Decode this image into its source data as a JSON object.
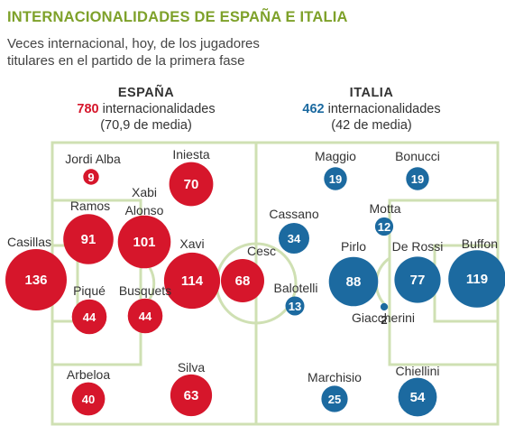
{
  "header": {
    "title": "INTERNACIONALIDADES DE ESPAÑA E ITALIA",
    "subtitle_line1": "Veces internacional, hoy, de los jugadores",
    "subtitle_line2": "titulares en el partido de la primera fase"
  },
  "teams": {
    "spain": {
      "name": "ESPAÑA",
      "total": "780",
      "total_label": "internacionalidades",
      "average": "(70,9 de media)",
      "color": "#d6162b"
    },
    "italy": {
      "name": "ITALIA",
      "total": "462",
      "total_label": "internacionalidades",
      "average": "(42 de media)",
      "color": "#1c6aa0"
    }
  },
  "colors": {
    "field_line": "#cfe0b3",
    "spain": "#d6162b",
    "italy": "#1c6aa0",
    "title": "#7ea12a"
  },
  "players": [
    {
      "team": "spain",
      "name": "Jordi Alba",
      "caps": 9
    },
    {
      "team": "spain",
      "name": "Iniesta",
      "caps": 70
    },
    {
      "team": "spain",
      "name": "Ramos",
      "caps": 91
    },
    {
      "team": "spain",
      "name": "Xabi Alonso",
      "caps": 101
    },
    {
      "team": "spain",
      "name": "Casillas",
      "caps": 136
    },
    {
      "team": "spain",
      "name": "Xavi",
      "caps": 114
    },
    {
      "team": "spain",
      "name": "Cesc",
      "caps": 68
    },
    {
      "team": "spain",
      "name": "Piqué",
      "caps": 44
    },
    {
      "team": "spain",
      "name": "Busquets",
      "caps": 44
    },
    {
      "team": "spain",
      "name": "Arbeloa",
      "caps": 40
    },
    {
      "team": "spain",
      "name": "Silva",
      "caps": 63
    },
    {
      "team": "italy",
      "name": "Maggio",
      "caps": 19
    },
    {
      "team": "italy",
      "name": "Bonucci",
      "caps": 19
    },
    {
      "team": "italy",
      "name": "Cassano",
      "caps": 34
    },
    {
      "team": "italy",
      "name": "Motta",
      "caps": 12
    },
    {
      "team": "italy",
      "name": "Pirlo",
      "caps": 88
    },
    {
      "team": "italy",
      "name": "De Rossi",
      "caps": 77
    },
    {
      "team": "italy",
      "name": "Buffon",
      "caps": 119
    },
    {
      "team": "italy",
      "name": "Balotelli",
      "caps": 13
    },
    {
      "team": "italy",
      "name": "Giaccherini",
      "caps": 2
    },
    {
      "team": "italy",
      "name": "Marchisio",
      "caps": 25
    },
    {
      "team": "italy",
      "name": "Chiellini",
      "caps": 54
    }
  ]
}
